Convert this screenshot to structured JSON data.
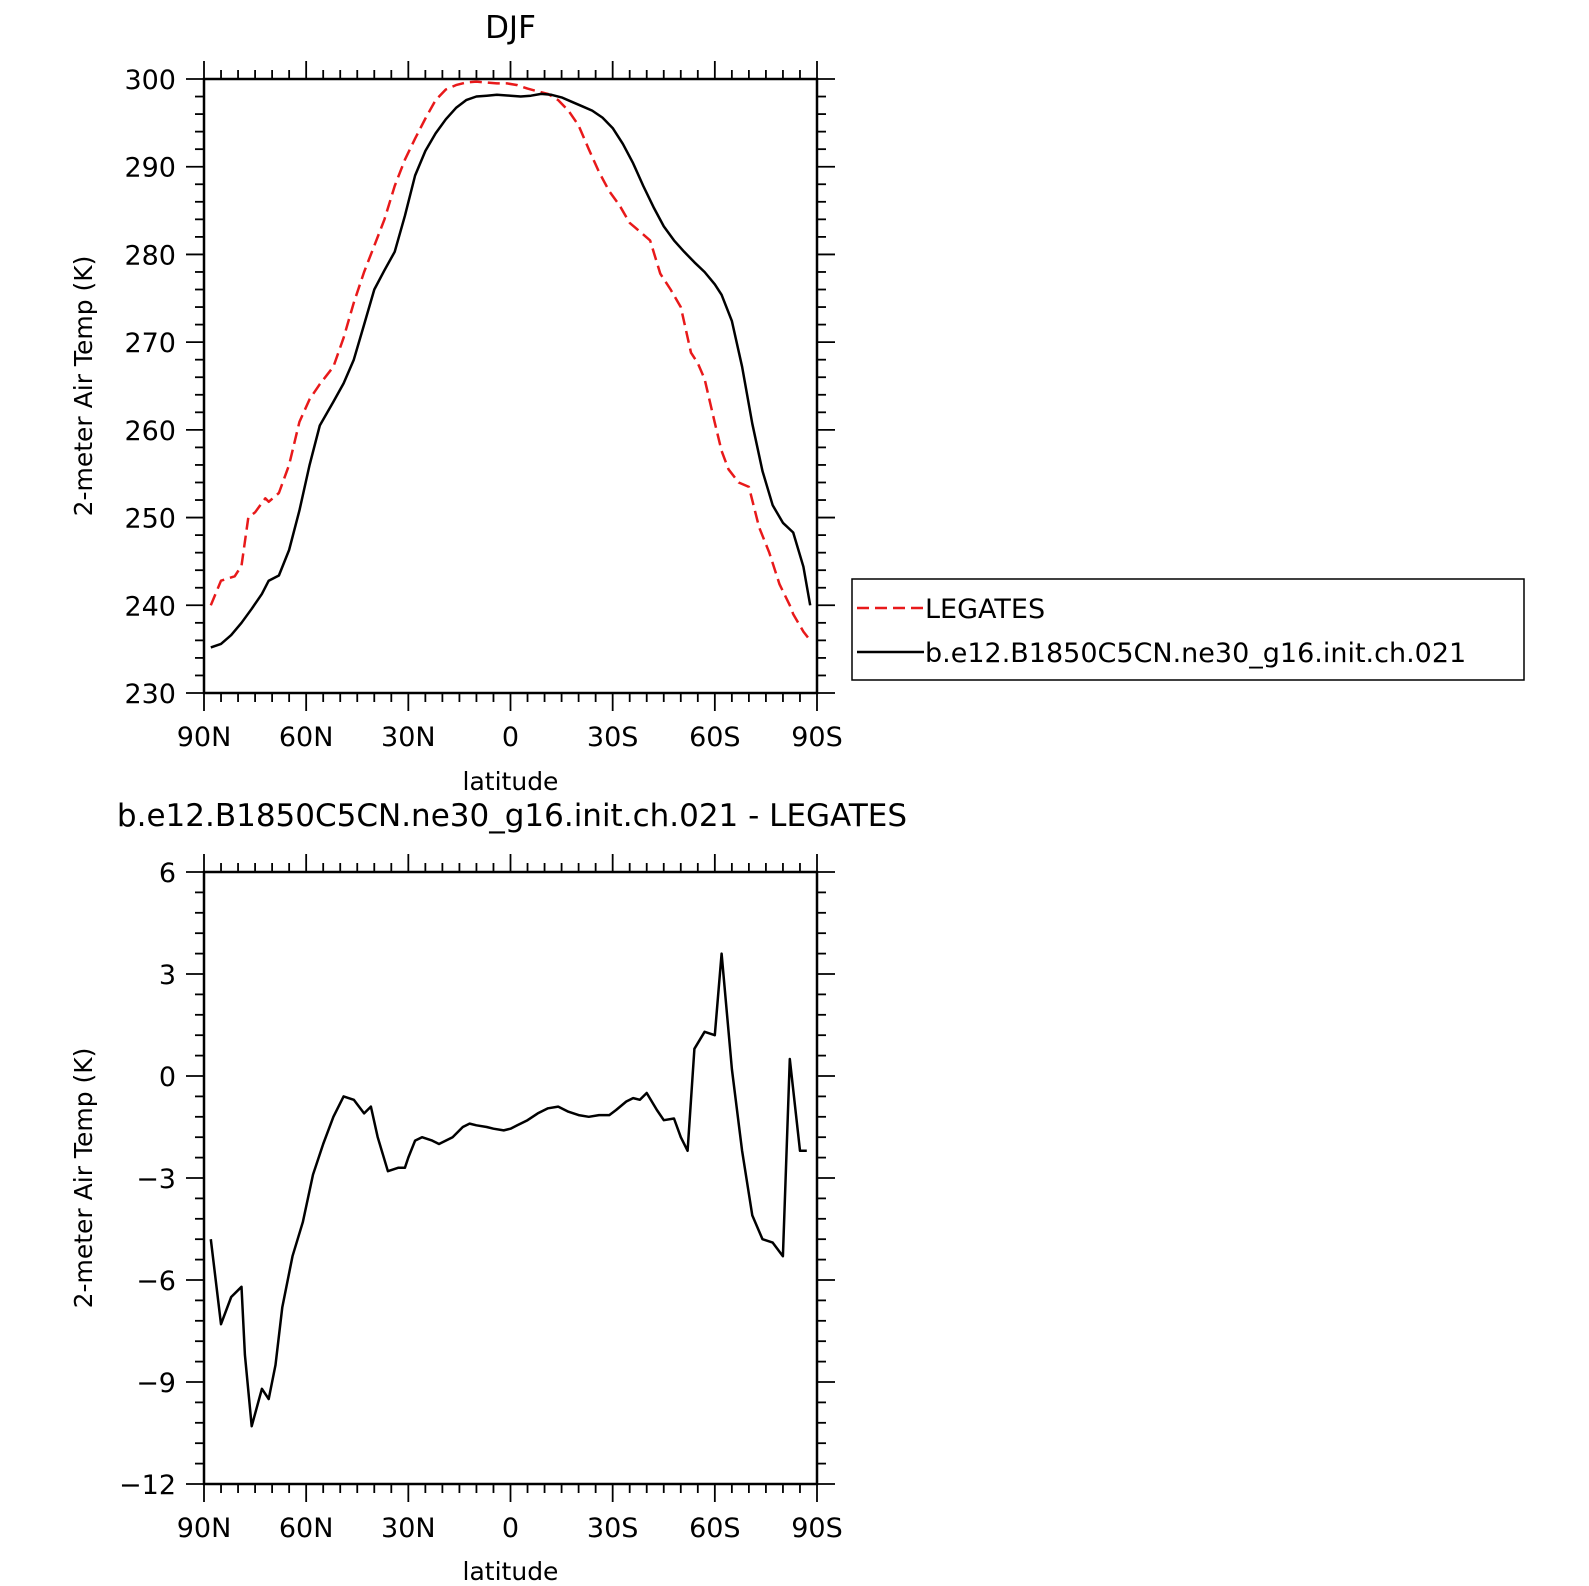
{
  "chart_data": [
    {
      "type": "line",
      "title": "DJF",
      "xlabel": "latitude",
      "ylabel": "2-meter Air Temp (K)",
      "xlim": [
        90,
        -90
      ],
      "ylim": [
        230,
        300
      ],
      "x_ticks": [
        90,
        60,
        30,
        0,
        -30,
        -60,
        -90
      ],
      "x_tick_labels": [
        "90N",
        "60N",
        "30N",
        "0",
        "30S",
        "60S",
        "90S"
      ],
      "y_ticks": [
        230,
        240,
        250,
        260,
        270,
        280,
        290,
        300
      ],
      "y_tick_labels": [
        "230",
        "240",
        "250",
        "260",
        "270",
        "280",
        "290",
        "300"
      ],
      "legend": "right",
      "grid": false,
      "series": [
        {
          "name": "LEGATES",
          "color": "#e8191a",
          "dash": "dashed",
          "x": [
            88,
            85,
            81,
            79,
            77,
            75,
            72,
            71,
            68,
            65,
            62,
            59,
            56,
            52,
            49,
            46,
            43,
            40,
            37,
            34,
            31,
            28,
            25,
            22,
            19,
            16,
            13,
            10,
            7,
            4,
            1,
            -2,
            -5,
            -8,
            -11,
            -14,
            -17,
            -20,
            -23,
            -26,
            -29,
            -32,
            -35,
            -38,
            -41,
            -44,
            -47,
            -50,
            -53,
            -55,
            -57,
            -60,
            -62,
            -64,
            -67,
            -70,
            -73,
            -76,
            -79,
            -82,
            -83,
            -86,
            -88
          ],
          "y": [
            240,
            242.8,
            243.3,
            244.5,
            250,
            250.6,
            252.2,
            251.8,
            252.8,
            256,
            260.9,
            263.5,
            265.2,
            267.2,
            270.5,
            274.5,
            278,
            281,
            284,
            287.8,
            290.8,
            293.2,
            295.5,
            297.6,
            298.8,
            299.3,
            299.6,
            299.7,
            299.6,
            299.5,
            299.5,
            299.3,
            298.9,
            298.6,
            298.3,
            297.6,
            296.4,
            294.7,
            292,
            289.4,
            287.2,
            285.6,
            283.6,
            282.6,
            281.6,
            277.8,
            276,
            274,
            268.8,
            267.6,
            265.8,
            260.8,
            257.6,
            255.5,
            254,
            253.5,
            248.9,
            246,
            242.4,
            240,
            239,
            237,
            236
          ]
        },
        {
          "name": "b.e12.B1850C5CN.ne30_g16.init.ch.021",
          "color": "#000000",
          "dash": "solid",
          "x": [
            88,
            85,
            82,
            79,
            76,
            73,
            71,
            68,
            65,
            62,
            59,
            56,
            52,
            49,
            46,
            43,
            40,
            37,
            34,
            31,
            28,
            25,
            22,
            19,
            16,
            13,
            10,
            7,
            4,
            0,
            -3,
            -6,
            -9,
            -12,
            -15,
            -18,
            -21,
            -24,
            -27,
            -30,
            -33,
            -36,
            -39,
            -42,
            -45,
            -48,
            -51,
            -54,
            -57,
            -60,
            -62,
            -65,
            -68,
            -71,
            -74,
            -77,
            -80,
            -83,
            -86,
            -88
          ],
          "y": [
            235.2,
            235.6,
            236.6,
            238,
            239.6,
            241.3,
            242.8,
            243.4,
            246.3,
            250.8,
            256,
            260.5,
            263.2,
            265.3,
            268,
            272,
            276,
            278.2,
            280.3,
            284.4,
            289,
            291.8,
            293.8,
            295.4,
            296.7,
            297.6,
            298,
            298.1,
            298.2,
            298.1,
            298,
            298.1,
            298.3,
            298.2,
            297.9,
            297.4,
            296.9,
            296.4,
            295.6,
            294.4,
            292.6,
            290.4,
            287.8,
            285.4,
            283.2,
            281.6,
            280.3,
            279.1,
            278,
            276.6,
            275.4,
            272.4,
            267.2,
            260.7,
            255.3,
            251.4,
            249.4,
            248.3,
            244.4,
            240
          ]
        }
      ]
    },
    {
      "type": "line",
      "title": "b.e12.B1850C5CN.ne30_g16.init.ch.021 - LEGATES",
      "xlabel": "latitude",
      "ylabel": "2-meter Air Temp (K)",
      "xlim": [
        90,
        -90
      ],
      "ylim": [
        -12,
        6
      ],
      "x_ticks": [
        90,
        60,
        30,
        0,
        -30,
        -60,
        -90
      ],
      "x_tick_labels": [
        "90N",
        "60N",
        "30N",
        "0",
        "30S",
        "60S",
        "90S"
      ],
      "y_ticks": [
        -12,
        -9,
        -6,
        -3,
        0,
        3,
        6
      ],
      "y_tick_labels": [
        "-12",
        "-9",
        "-6",
        "-3",
        "0",
        "3",
        "6"
      ],
      "grid": false,
      "series": [
        {
          "color": "#000000",
          "dash": "solid",
          "x": [
            88,
            85,
            82,
            79,
            78,
            76,
            73,
            71,
            69,
            67,
            64,
            61,
            58,
            55,
            52,
            49,
            46,
            43,
            41,
            39,
            36,
            33,
            31,
            30,
            28,
            26,
            23,
            21,
            19,
            17,
            14,
            12,
            10,
            7,
            5,
            2,
            0,
            -2,
            -5,
            -8,
            -11,
            -14,
            -17,
            -20,
            -23,
            -26,
            -29,
            -31,
            -34,
            -36,
            -38,
            -40,
            -43,
            -45,
            -48,
            -50,
            -52,
            -54,
            -57,
            -60,
            -62,
            -65,
            -68,
            -71,
            -74,
            -77,
            -80,
            -82,
            -85,
            -87
          ],
          "y": [
            -4.8,
            -7.3,
            -6.5,
            -6.2,
            -8.2,
            -10.3,
            -9.2,
            -9.5,
            -8.5,
            -6.8,
            -5.3,
            -4.3,
            -2.9,
            -2,
            -1.2,
            -0.6,
            -0.7,
            -1.1,
            -0.9,
            -1.8,
            -2.8,
            -2.7,
            -2.7,
            -2.4,
            -1.9,
            -1.8,
            -1.9,
            -2,
            -1.9,
            -1.8,
            -1.5,
            -1.4,
            -1.45,
            -1.5,
            -1.55,
            -1.6,
            -1.55,
            -1.45,
            -1.3,
            -1.1,
            -0.95,
            -0.9,
            -1.05,
            -1.15,
            -1.2,
            -1.15,
            -1.15,
            -1,
            -0.75,
            -0.65,
            -0.7,
            -0.5,
            -1,
            -1.3,
            -1.25,
            -1.8,
            -2.2,
            0.8,
            1.3,
            1.2,
            3.6,
            0.2,
            -2.2,
            -4.1,
            -4.8,
            -4.9,
            -5.3,
            0.5,
            -2.2,
            -2.2
          ]
        }
      ]
    }
  ],
  "legend": {
    "items": [
      {
        "label": "LEGATES",
        "color": "#e8191a",
        "dash": "dashed"
      },
      {
        "label": "b.e12.B1850C5CN.ne30_g16.init.ch.021",
        "color": "#000000",
        "dash": "solid"
      }
    ]
  }
}
